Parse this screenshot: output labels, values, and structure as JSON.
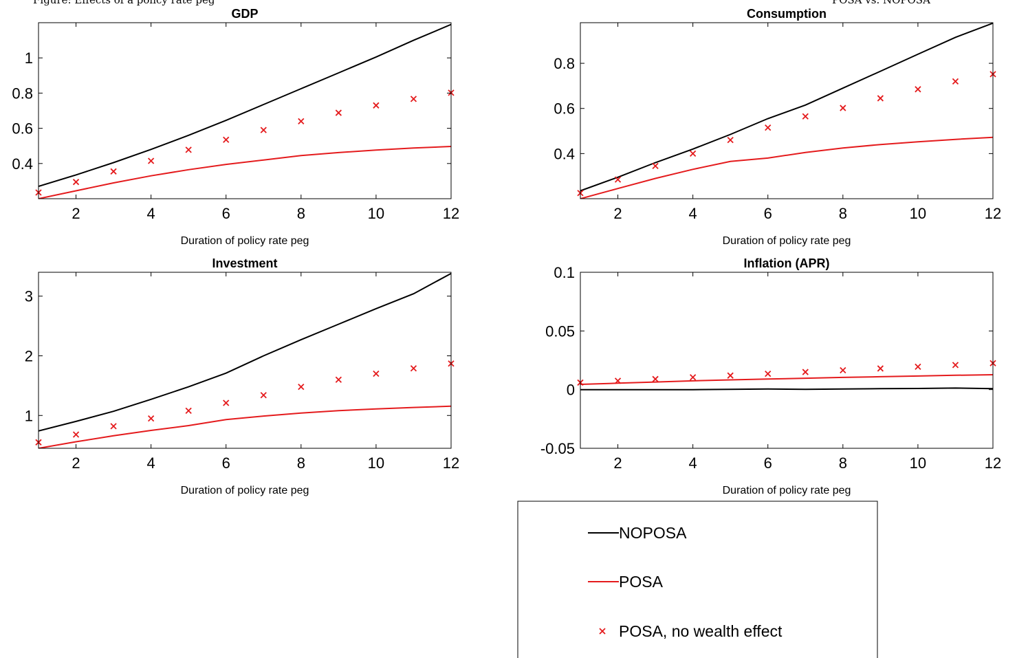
{
  "header": {
    "left_text": "Figure: Effects of a policy rate peg",
    "right_text": "POSA vs. NOPOSA"
  },
  "colors": {
    "noposa": "#000000",
    "posa": "#e41a1c",
    "marker": "#e41a1c",
    "axis": "#000000"
  },
  "legend": {
    "placement": "below right panels",
    "entries": [
      {
        "label": "NOPOSA",
        "style": "line",
        "color": "#000000"
      },
      {
        "label": "POSA",
        "style": "line",
        "color": "#e41a1c"
      },
      {
        "label": "POSA, no wealth effect",
        "style": "marker-x",
        "color": "#e41a1c"
      }
    ]
  },
  "chart_data": [
    {
      "type": "line",
      "title": "GDP",
      "xlabel": "Duration of policy rate peg",
      "xlim": [
        1,
        12
      ],
      "ylim": [
        0.2,
        1.2
      ],
      "xticks": [
        2,
        4,
        6,
        8,
        10,
        12
      ],
      "yticks": [
        0.4,
        0.6,
        0.8,
        1
      ],
      "ytick_labels": [
        "0.4",
        "0.6",
        "0.8",
        "1"
      ],
      "x": [
        1,
        2,
        3,
        4,
        5,
        6,
        7,
        8,
        9,
        10,
        11,
        12
      ],
      "series": [
        {
          "name": "NOPOSA",
          "style": "line",
          "values": [
            0.27,
            0.335,
            0.405,
            0.48,
            0.56,
            0.645,
            0.735,
            0.825,
            0.915,
            1.005,
            1.1,
            1.19
          ]
        },
        {
          "name": "POSA",
          "style": "line",
          "values": [
            0.2,
            0.245,
            0.29,
            0.33,
            0.365,
            0.395,
            0.42,
            0.445,
            0.462,
            0.476,
            0.488,
            0.497
          ]
        },
        {
          "name": "POSA, no wealth effect",
          "style": "marker-x",
          "values": [
            0.235,
            0.295,
            0.355,
            0.415,
            0.478,
            0.535,
            0.59,
            0.64,
            0.688,
            0.73,
            0.767,
            0.802
          ]
        }
      ]
    },
    {
      "type": "line",
      "title": "Consumption",
      "xlabel": "Duration of policy rate peg",
      "xlim": [
        1,
        12
      ],
      "ylim": [
        0.2,
        0.98
      ],
      "xticks": [
        2,
        4,
        6,
        8,
        10,
        12
      ],
      "yticks": [
        0.4,
        0.6,
        0.8
      ],
      "ytick_labels": [
        "0.4",
        "0.6",
        "0.8"
      ],
      "x": [
        1,
        2,
        3,
        4,
        5,
        6,
        7,
        8,
        9,
        10,
        11,
        12
      ],
      "series": [
        {
          "name": "NOPOSA",
          "style": "line",
          "values": [
            0.235,
            0.295,
            0.36,
            0.42,
            0.485,
            0.555,
            0.615,
            0.69,
            0.765,
            0.84,
            0.915,
            0.978
          ]
        },
        {
          "name": "POSA",
          "style": "line",
          "values": [
            0.2,
            0.245,
            0.29,
            0.33,
            0.365,
            0.38,
            0.405,
            0.425,
            0.44,
            0.452,
            0.463,
            0.472
          ]
        },
        {
          "name": "POSA, no wealth effect",
          "style": "marker-x",
          "values": [
            0.225,
            0.285,
            0.345,
            0.4,
            0.46,
            0.515,
            0.565,
            0.602,
            0.645,
            0.685,
            0.72,
            0.752
          ]
        }
      ]
    },
    {
      "type": "line",
      "title": "Investment",
      "xlabel": "Duration of policy rate peg",
      "xlim": [
        1,
        12
      ],
      "ylim": [
        0.45,
        3.4
      ],
      "xticks": [
        2,
        4,
        6,
        8,
        10,
        12
      ],
      "yticks": [
        1,
        2,
        3
      ],
      "ytick_labels": [
        "1",
        "2",
        "3"
      ],
      "x": [
        1,
        2,
        3,
        4,
        5,
        6,
        7,
        8,
        9,
        10,
        11,
        12
      ],
      "series": [
        {
          "name": "NOPOSA",
          "style": "line",
          "values": [
            0.74,
            0.9,
            1.07,
            1.27,
            1.48,
            1.71,
            2.0,
            2.27,
            2.53,
            2.79,
            3.04,
            3.38
          ]
        },
        {
          "name": "POSA",
          "style": "line",
          "values": [
            0.45,
            0.56,
            0.66,
            0.75,
            0.83,
            0.93,
            0.99,
            1.04,
            1.08,
            1.11,
            1.135,
            1.155
          ]
        },
        {
          "name": "POSA, no wealth effect",
          "style": "marker-x",
          "values": [
            0.55,
            0.68,
            0.82,
            0.95,
            1.08,
            1.21,
            1.34,
            1.48,
            1.6,
            1.7,
            1.79,
            1.87
          ]
        }
      ]
    },
    {
      "type": "line",
      "title": "Inflation (APR)",
      "xlabel": "Duration of policy rate peg",
      "xlim": [
        1,
        12
      ],
      "ylim": [
        -0.05,
        0.1
      ],
      "xticks": [
        2,
        4,
        6,
        8,
        10,
        12
      ],
      "yticks": [
        -0.05,
        0,
        0.05,
        0.1
      ],
      "ytick_labels": [
        "-0.05",
        "0",
        "0.05",
        "0.1"
      ],
      "x": [
        1,
        2,
        3,
        4,
        5,
        6,
        7,
        8,
        9,
        10,
        11,
        12
      ],
      "series": [
        {
          "name": "NOPOSA",
          "style": "line",
          "values": [
            0.0,
            0.0,
            0.0,
            0.0,
            0.0003,
            0.0005,
            0.0003,
            0.0005,
            0.0008,
            0.001,
            0.0013,
            0.0008
          ]
        },
        {
          "name": "POSA",
          "style": "line",
          "values": [
            0.0045,
            0.0055,
            0.0065,
            0.0075,
            0.0083,
            0.009,
            0.0097,
            0.0104,
            0.011,
            0.0116,
            0.0122,
            0.0127
          ]
        },
        {
          "name": "POSA, no wealth effect",
          "style": "marker-x",
          "values": [
            0.006,
            0.0075,
            0.009,
            0.0105,
            0.012,
            0.0135,
            0.015,
            0.0165,
            0.018,
            0.0195,
            0.021,
            0.0225
          ]
        }
      ]
    }
  ]
}
